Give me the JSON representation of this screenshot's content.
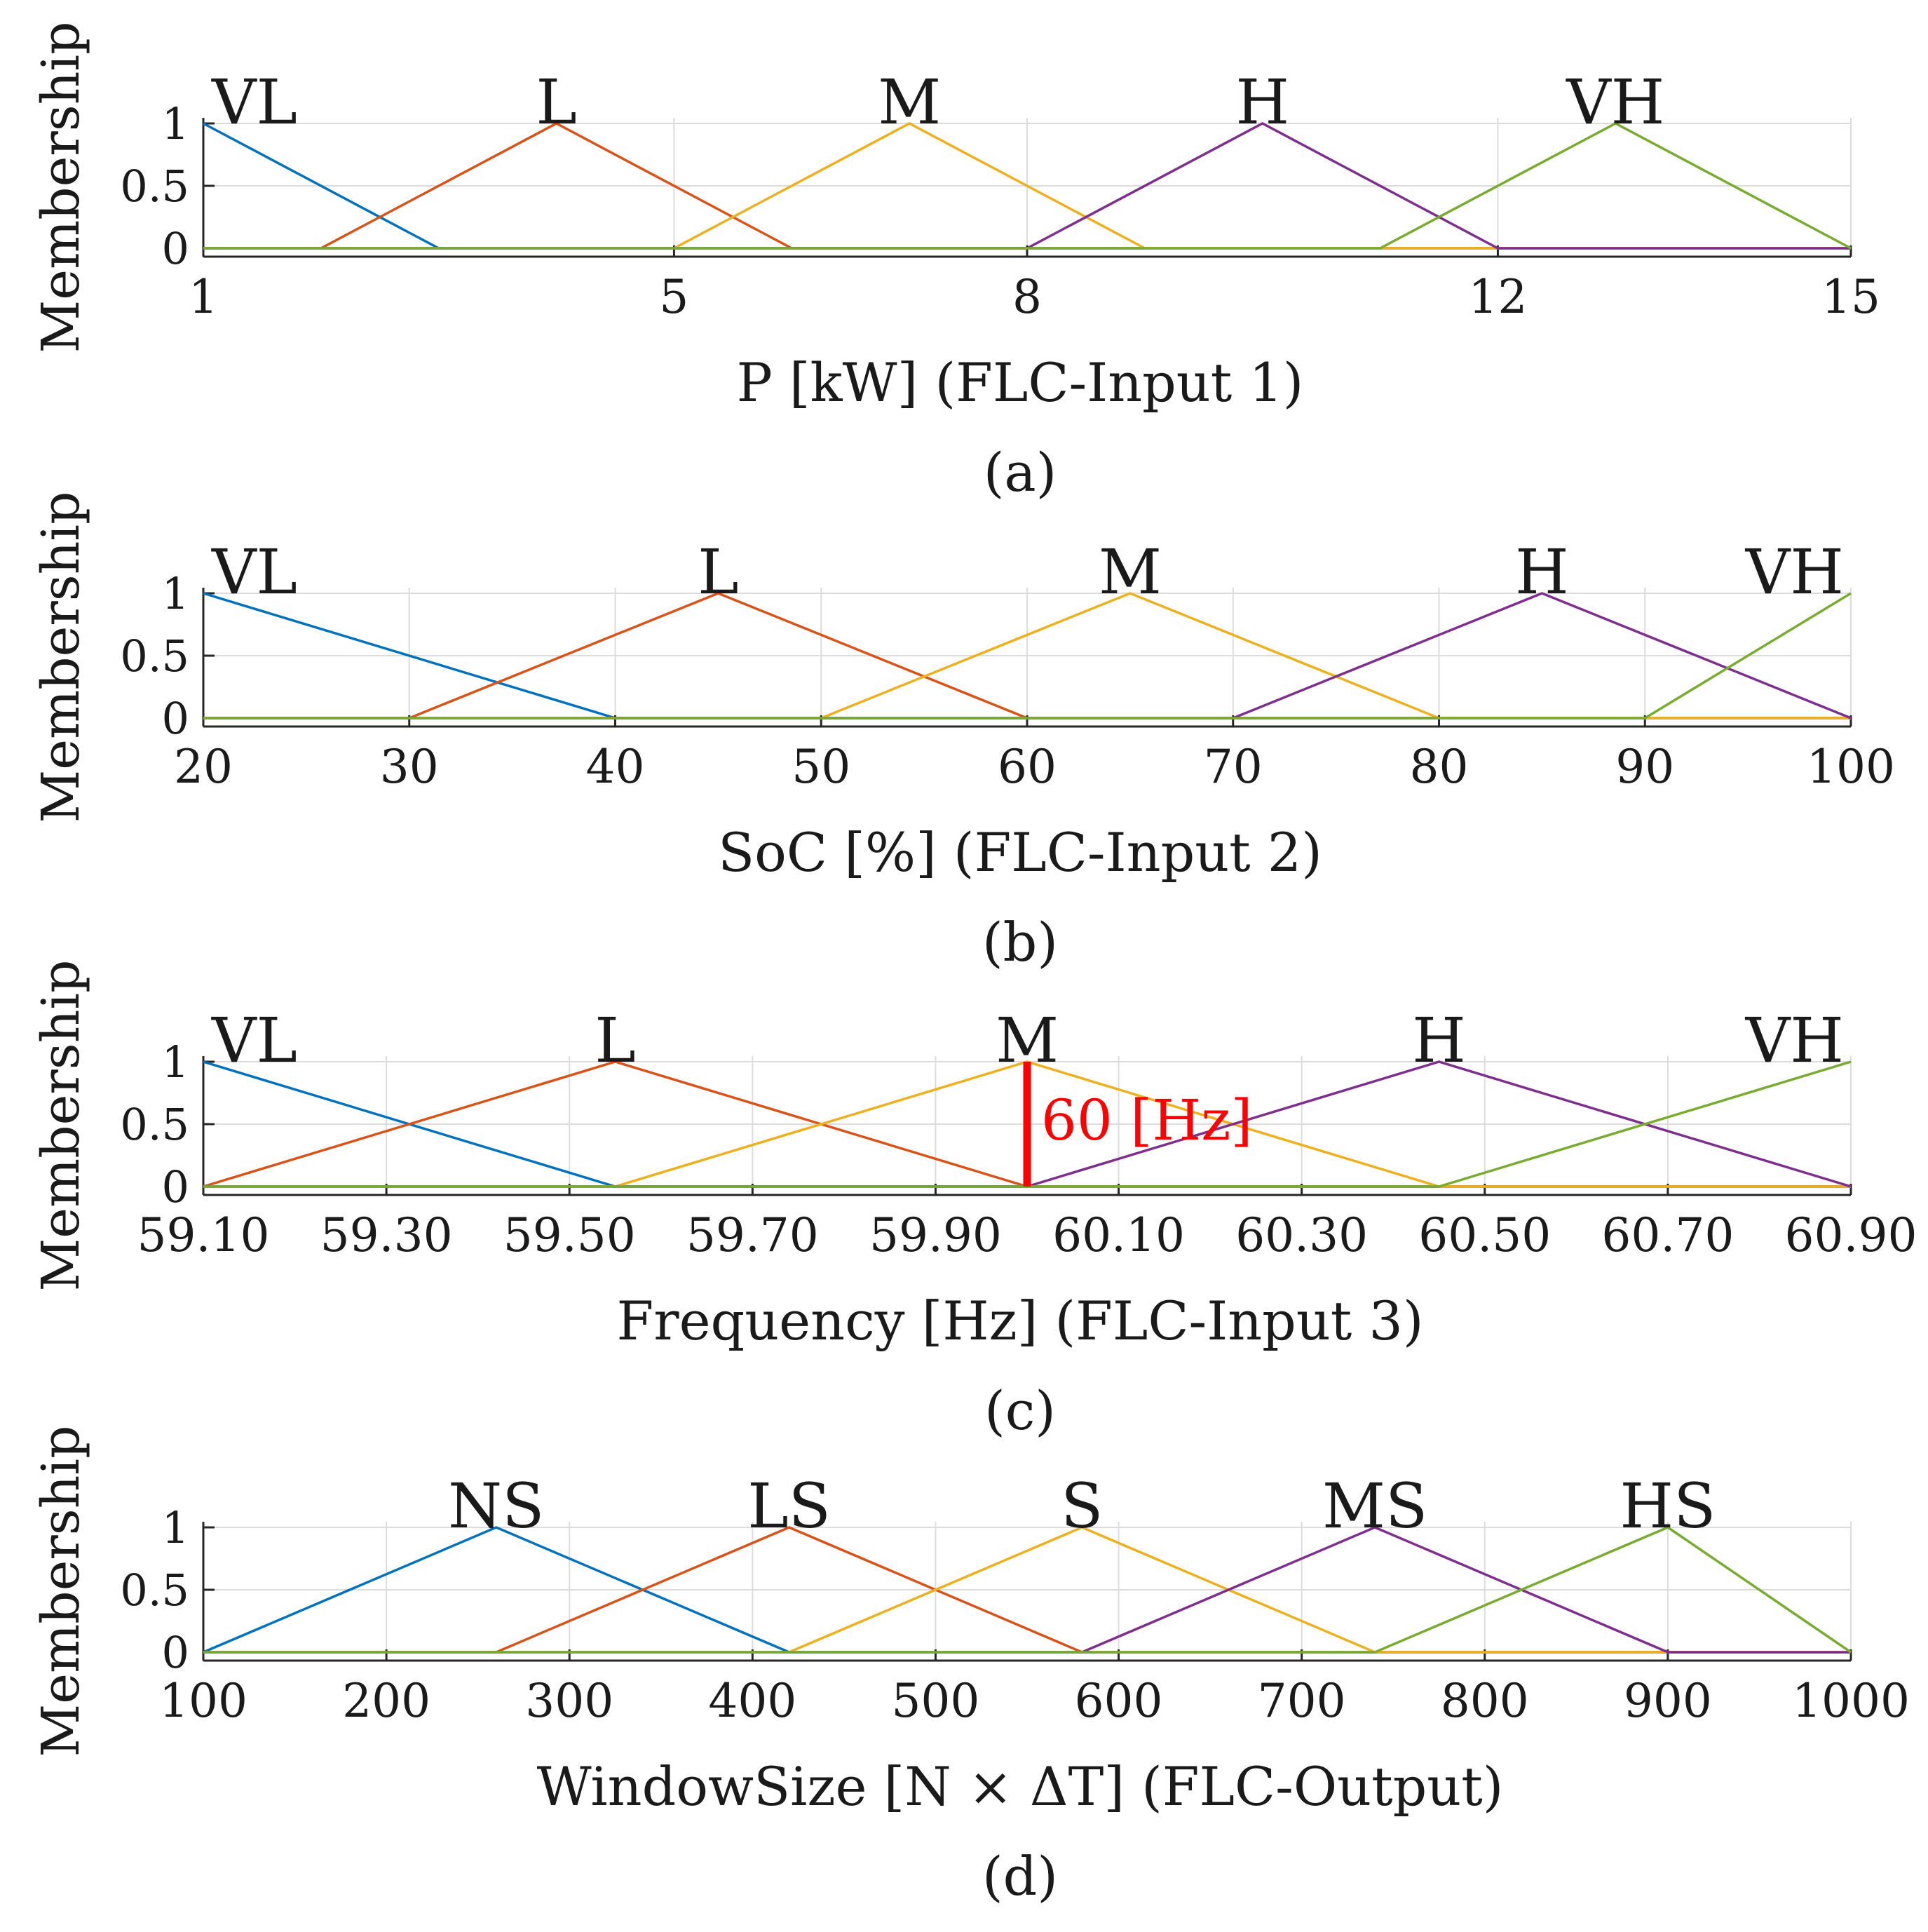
{
  "chart_data": [
    {
      "type": "line",
      "panel_label": "(a)",
      "xlabel": "P [kW] (FLC-Input 1)",
      "ylabel": "Membership",
      "xlim": [
        1,
        15
      ],
      "ylim": [
        0,
        1
      ],
      "x_ticks": [
        1,
        5,
        8,
        12,
        15
      ],
      "x_tick_labels": [
        "1",
        "5",
        "8",
        "12",
        "15"
      ],
      "y_ticks": [
        0,
        0.5,
        1
      ],
      "y_tick_labels": [
        "0",
        "0.5",
        "1"
      ],
      "series": [
        {
          "name": "VL",
          "color": "#0072BD",
          "x": [
            1,
            3,
            15
          ],
          "y": [
            1,
            0,
            0
          ]
        },
        {
          "name": "L",
          "color": "#D95319",
          "x": [
            1,
            2,
            4,
            6,
            15
          ],
          "y": [
            0,
            0,
            1,
            0,
            0
          ]
        },
        {
          "name": "M",
          "color": "#EDB120",
          "x": [
            1,
            5,
            7,
            9,
            15
          ],
          "y": [
            0,
            0,
            1,
            0,
            0
          ]
        },
        {
          "name": "H",
          "color": "#7E2F8E",
          "x": [
            1,
            8,
            10,
            12,
            15
          ],
          "y": [
            0,
            0,
            1,
            0,
            0
          ]
        },
        {
          "name": "VH",
          "color": "#77AC30",
          "x": [
            1,
            11,
            13,
            15
          ],
          "y": [
            0,
            0,
            1,
            0
          ]
        }
      ],
      "annotations": []
    },
    {
      "type": "line",
      "panel_label": "(b)",
      "xlabel": "SoC [%] (FLC-Input 2)",
      "ylabel": "Membership",
      "xlim": [
        20,
        100
      ],
      "ylim": [
        0,
        1
      ],
      "x_ticks": [
        20,
        30,
        40,
        50,
        60,
        70,
        80,
        90,
        100
      ],
      "x_tick_labels": [
        "20",
        "30",
        "40",
        "50",
        "60",
        "70",
        "80",
        "90",
        "100"
      ],
      "y_ticks": [
        0,
        0.5,
        1
      ],
      "y_tick_labels": [
        "0",
        "0.5",
        "1"
      ],
      "series": [
        {
          "name": "VL",
          "color": "#0072BD",
          "x": [
            20,
            40,
            100
          ],
          "y": [
            1,
            0,
            0
          ]
        },
        {
          "name": "L",
          "color": "#D95319",
          "x": [
            20,
            30,
            45,
            60,
            100
          ],
          "y": [
            0,
            0,
            1,
            0,
            0
          ]
        },
        {
          "name": "M",
          "color": "#EDB120",
          "x": [
            20,
            50,
            65,
            80,
            100
          ],
          "y": [
            0,
            0,
            1,
            0,
            0
          ]
        },
        {
          "name": "H",
          "color": "#7E2F8E",
          "x": [
            20,
            70,
            85,
            100
          ],
          "y": [
            0,
            0,
            1,
            0
          ]
        },
        {
          "name": "VH",
          "color": "#77AC30",
          "x": [
            20,
            90,
            100
          ],
          "y": [
            0,
            0,
            1
          ]
        }
      ],
      "annotations": []
    },
    {
      "type": "line",
      "panel_label": "(c)",
      "xlabel": "Frequency [Hz] (FLC-Input 3)",
      "ylabel": "Membership",
      "xlim": [
        59.1,
        60.9
      ],
      "ylim": [
        0,
        1
      ],
      "x_ticks": [
        59.1,
        59.3,
        59.5,
        59.7,
        59.9,
        60.1,
        60.3,
        60.5,
        60.7,
        60.9
      ],
      "x_tick_labels": [
        "59.10",
        "59.30",
        "59.50",
        "59.70",
        "59.90",
        "60.10",
        "60.30",
        "60.50",
        "60.70",
        "60.90"
      ],
      "y_ticks": [
        0,
        0.5,
        1
      ],
      "y_tick_labels": [
        "0",
        "0.5",
        "1"
      ],
      "series": [
        {
          "name": "VL",
          "color": "#0072BD",
          "x": [
            59.1,
            59.55,
            60.9
          ],
          "y": [
            1,
            0,
            0
          ]
        },
        {
          "name": "L",
          "color": "#D95319",
          "x": [
            59.1,
            59.55,
            60.0,
            60.9
          ],
          "y": [
            0,
            1,
            0,
            0
          ]
        },
        {
          "name": "M",
          "color": "#EDB120",
          "x": [
            59.1,
            59.55,
            60.0,
            60.45,
            60.9
          ],
          "y": [
            0,
            0,
            1,
            0,
            0
          ]
        },
        {
          "name": "H",
          "color": "#7E2F8E",
          "x": [
            59.1,
            60.0,
            60.45,
            60.9
          ],
          "y": [
            0,
            0,
            1,
            0
          ]
        },
        {
          "name": "VH",
          "color": "#77AC30",
          "x": [
            59.1,
            60.45,
            60.9
          ],
          "y": [
            0,
            0,
            1
          ]
        }
      ],
      "annotations": [
        {
          "text": "60 [Hz]",
          "x": 60.0,
          "y_from": 0,
          "y_to": 1,
          "color": "#FF0000"
        }
      ]
    },
    {
      "type": "line",
      "panel_label": "(d)",
      "xlabel": "WindowSize [N × ΔT] (FLC-Output)",
      "ylabel": "Membership",
      "xlim": [
        100,
        1000
      ],
      "ylim": [
        0,
        1
      ],
      "x_ticks": [
        100,
        200,
        300,
        400,
        500,
        600,
        700,
        800,
        900,
        1000
      ],
      "x_tick_labels": [
        "100",
        "200",
        "300",
        "400",
        "500",
        "600",
        "700",
        "800",
        "900",
        "1000"
      ],
      "y_ticks": [
        0,
        0.5,
        1
      ],
      "y_tick_labels": [
        "0",
        "0.5",
        "1"
      ],
      "series": [
        {
          "name": "NS",
          "color": "#0072BD",
          "x": [
            100,
            260,
            420,
            1000
          ],
          "y": [
            0,
            1,
            0,
            0
          ]
        },
        {
          "name": "LS",
          "color": "#D95319",
          "x": [
            100,
            260,
            420,
            580,
            1000
          ],
          "y": [
            0,
            0,
            1,
            0,
            0
          ]
        },
        {
          "name": "S",
          "color": "#EDB120",
          "x": [
            100,
            420,
            580,
            740,
            1000
          ],
          "y": [
            0,
            0,
            1,
            0,
            0
          ]
        },
        {
          "name": "MS",
          "color": "#7E2F8E",
          "x": [
            100,
            580,
            740,
            900,
            1000
          ],
          "y": [
            0,
            0,
            1,
            0,
            0
          ]
        },
        {
          "name": "HS",
          "color": "#77AC30",
          "x": [
            100,
            740,
            900,
            1000
          ],
          "y": [
            0,
            0,
            1,
            0
          ]
        }
      ],
      "annotations": []
    }
  ]
}
